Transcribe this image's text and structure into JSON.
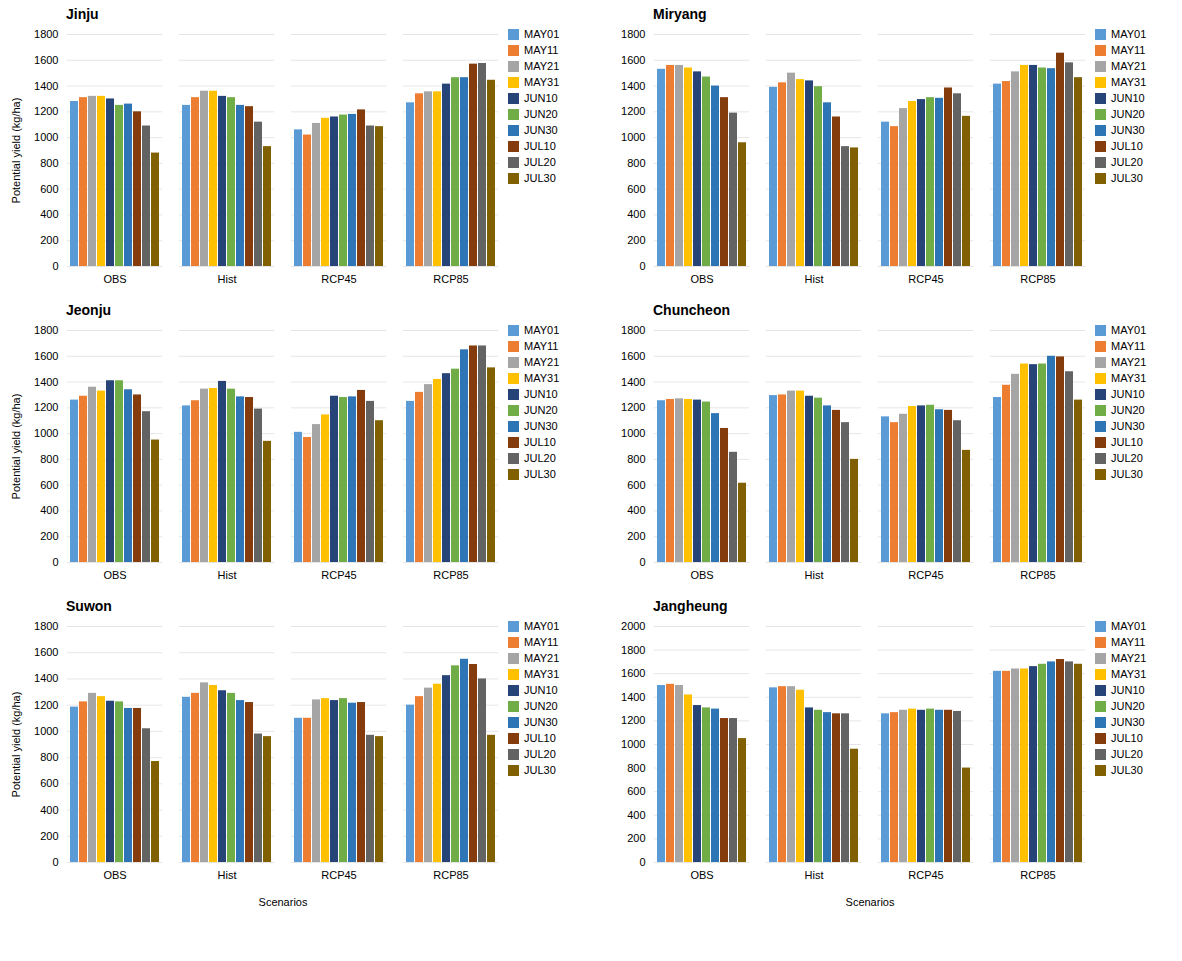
{
  "chart_data": [
    {
      "type": "bar",
      "title": "Jinju",
      "ylabel": "Potential yield (kg/ha)",
      "categories": [
        "OBS",
        "Hist",
        "RCP45",
        "RCP85"
      ],
      "series": [
        {
          "name": "MAY01",
          "color": "#5B9BD5",
          "values": [
            1280,
            1250,
            1060,
            1270
          ]
        },
        {
          "name": "MAY11",
          "color": "#ED7D31",
          "values": [
            1310,
            1310,
            1020,
            1340
          ]
        },
        {
          "name": "MAY21",
          "color": "#A5A5A5",
          "values": [
            1320,
            1360,
            1110,
            1355
          ]
        },
        {
          "name": "MAY31",
          "color": "#FFC000",
          "values": [
            1320,
            1360,
            1150,
            1355
          ]
        },
        {
          "name": "JUN10",
          "color": "#264478",
          "values": [
            1300,
            1320,
            1160,
            1415
          ]
        },
        {
          "name": "JUN20",
          "color": "#70AD47",
          "values": [
            1250,
            1310,
            1175,
            1465
          ]
        },
        {
          "name": "JUN30",
          "color": "#2E75B6",
          "values": [
            1260,
            1250,
            1180,
            1465
          ]
        },
        {
          "name": "JUL10",
          "color": "#843C0C",
          "values": [
            1200,
            1240,
            1215,
            1570
          ]
        },
        {
          "name": "JUL20",
          "color": "#636363",
          "values": [
            1090,
            1120,
            1090,
            1575
          ]
        },
        {
          "name": "JUL30",
          "color": "#806000",
          "values": [
            880,
            930,
            1085,
            1445
          ]
        }
      ],
      "ylim": [
        0,
        1800
      ],
      "yticks": [
        0,
        200,
        400,
        600,
        800,
        1000,
        1200,
        1400,
        1600,
        1800
      ],
      "grid": true,
      "legend": "right"
    },
    {
      "type": "bar",
      "title": "Miryang",
      "categories": [
        "OBS",
        "Hist",
        "RCP45",
        "RCP85"
      ],
      "series": [
        {
          "name": "MAY01",
          "color": "#5B9BD5",
          "values": [
            1530,
            1390,
            1120,
            1415
          ]
        },
        {
          "name": "MAY11",
          "color": "#ED7D31",
          "values": [
            1560,
            1425,
            1085,
            1435
          ]
        },
        {
          "name": "MAY21",
          "color": "#A5A5A5",
          "values": [
            1560,
            1500,
            1225,
            1510
          ]
        },
        {
          "name": "MAY31",
          "color": "#FFC000",
          "values": [
            1540,
            1450,
            1280,
            1560
          ]
        },
        {
          "name": "JUN10",
          "color": "#264478",
          "values": [
            1510,
            1440,
            1295,
            1560
          ]
        },
        {
          "name": "JUN20",
          "color": "#70AD47",
          "values": [
            1470,
            1395,
            1310,
            1540
          ]
        },
        {
          "name": "JUN30",
          "color": "#2E75B6",
          "values": [
            1400,
            1270,
            1305,
            1535
          ]
        },
        {
          "name": "JUL10",
          "color": "#843C0C",
          "values": [
            1310,
            1160,
            1385,
            1655
          ]
        },
        {
          "name": "JUL20",
          "color": "#636363",
          "values": [
            1190,
            930,
            1340,
            1580
          ]
        },
        {
          "name": "JUL30",
          "color": "#806000",
          "values": [
            960,
            920,
            1165,
            1465
          ]
        }
      ],
      "ylim": [
        0,
        1800
      ],
      "yticks": [
        0,
        200,
        400,
        600,
        800,
        1000,
        1200,
        1400,
        1600,
        1800
      ],
      "grid": true,
      "legend": "right"
    },
    {
      "type": "bar",
      "title": "Jeonju",
      "ylabel": "Potential yield (kg/ha)",
      "categories": [
        "OBS",
        "Hist",
        "RCP45",
        "RCP85"
      ],
      "series": [
        {
          "name": "MAY01",
          "color": "#5B9BD5",
          "values": [
            1260,
            1215,
            1010,
            1250
          ]
        },
        {
          "name": "MAY11",
          "color": "#ED7D31",
          "values": [
            1290,
            1255,
            970,
            1320
          ]
        },
        {
          "name": "MAY21",
          "color": "#A5A5A5",
          "values": [
            1360,
            1345,
            1070,
            1380
          ]
        },
        {
          "name": "MAY31",
          "color": "#FFC000",
          "values": [
            1330,
            1350,
            1145,
            1420
          ]
        },
        {
          "name": "JUN10",
          "color": "#264478",
          "values": [
            1410,
            1405,
            1290,
            1465
          ]
        },
        {
          "name": "JUN20",
          "color": "#70AD47",
          "values": [
            1410,
            1345,
            1280,
            1500
          ]
        },
        {
          "name": "JUN30",
          "color": "#2E75B6",
          "values": [
            1340,
            1285,
            1285,
            1650
          ]
        },
        {
          "name": "JUL10",
          "color": "#843C0C",
          "values": [
            1300,
            1280,
            1335,
            1680
          ]
        },
        {
          "name": "JUL20",
          "color": "#636363",
          "values": [
            1170,
            1190,
            1250,
            1680
          ]
        },
        {
          "name": "JUL30",
          "color": "#806000",
          "values": [
            950,
            940,
            1100,
            1510
          ]
        }
      ],
      "ylim": [
        0,
        1800
      ],
      "yticks": [
        0,
        200,
        400,
        600,
        800,
        1000,
        1200,
        1400,
        1600,
        1800
      ],
      "grid": true,
      "legend": "right"
    },
    {
      "type": "bar",
      "title": "Chuncheon",
      "categories": [
        "OBS",
        "Hist",
        "RCP45",
        "RCP85"
      ],
      "series": [
        {
          "name": "MAY01",
          "color": "#5B9BD5",
          "values": [
            1255,
            1295,
            1130,
            1280
          ]
        },
        {
          "name": "MAY11",
          "color": "#ED7D31",
          "values": [
            1265,
            1300,
            1085,
            1375
          ]
        },
        {
          "name": "MAY21",
          "color": "#A5A5A5",
          "values": [
            1270,
            1330,
            1150,
            1460
          ]
        },
        {
          "name": "MAY31",
          "color": "#FFC000",
          "values": [
            1265,
            1330,
            1210,
            1540
          ]
        },
        {
          "name": "JUN10",
          "color": "#264478",
          "values": [
            1260,
            1290,
            1215,
            1535
          ]
        },
        {
          "name": "JUN20",
          "color": "#70AD47",
          "values": [
            1245,
            1275,
            1220,
            1540
          ]
        },
        {
          "name": "JUN30",
          "color": "#2E75B6",
          "values": [
            1155,
            1215,
            1185,
            1600
          ]
        },
        {
          "name": "JUL10",
          "color": "#843C0C",
          "values": [
            1040,
            1180,
            1180,
            1595
          ]
        },
        {
          "name": "JUL20",
          "color": "#636363",
          "values": [
            855,
            1085,
            1100,
            1480
          ]
        },
        {
          "name": "JUL30",
          "color": "#806000",
          "values": [
            615,
            800,
            870,
            1260
          ]
        }
      ],
      "ylim": [
        0,
        1800
      ],
      "yticks": [
        0,
        200,
        400,
        600,
        800,
        1000,
        1200,
        1400,
        1600,
        1800
      ],
      "grid": true,
      "legend": "right"
    },
    {
      "type": "bar",
      "title": "Suwon",
      "ylabel": "Potential yield (kg/ha)",
      "xlabel": "Scenarios",
      "categories": [
        "OBS",
        "Hist",
        "RCP45",
        "RCP85"
      ],
      "series": [
        {
          "name": "MAY01",
          "color": "#5B9BD5",
          "values": [
            1185,
            1260,
            1100,
            1200
          ]
        },
        {
          "name": "MAY11",
          "color": "#ED7D31",
          "values": [
            1225,
            1290,
            1100,
            1265
          ]
        },
        {
          "name": "MAY21",
          "color": "#A5A5A5",
          "values": [
            1290,
            1370,
            1240,
            1330
          ]
        },
        {
          "name": "MAY31",
          "color": "#FFC000",
          "values": [
            1265,
            1350,
            1250,
            1360
          ]
        },
        {
          "name": "JUN10",
          "color": "#264478",
          "values": [
            1230,
            1310,
            1235,
            1425
          ]
        },
        {
          "name": "JUN20",
          "color": "#70AD47",
          "values": [
            1225,
            1290,
            1250,
            1500
          ]
        },
        {
          "name": "JUN30",
          "color": "#2E75B6",
          "values": [
            1175,
            1235,
            1215,
            1550
          ]
        },
        {
          "name": "JUL10",
          "color": "#843C0C",
          "values": [
            1175,
            1220,
            1220,
            1510
          ]
        },
        {
          "name": "JUL20",
          "color": "#636363",
          "values": [
            1020,
            980,
            970,
            1400
          ]
        },
        {
          "name": "JUL30",
          "color": "#806000",
          "values": [
            770,
            960,
            960,
            970
          ]
        }
      ],
      "ylim": [
        0,
        1800
      ],
      "yticks": [
        0,
        200,
        400,
        600,
        800,
        1000,
        1200,
        1400,
        1600,
        1800
      ],
      "grid": true,
      "legend": "right"
    },
    {
      "type": "bar",
      "title": "Jangheung",
      "xlabel": "Scenarios",
      "categories": [
        "OBS",
        "Hist",
        "RCP45",
        "RCP85"
      ],
      "series": [
        {
          "name": "MAY01",
          "color": "#5B9BD5",
          "values": [
            1500,
            1480,
            1260,
            1620
          ]
        },
        {
          "name": "MAY11",
          "color": "#ED7D31",
          "values": [
            1510,
            1490,
            1270,
            1620
          ]
        },
        {
          "name": "MAY21",
          "color": "#A5A5A5",
          "values": [
            1500,
            1490,
            1290,
            1640
          ]
        },
        {
          "name": "MAY31",
          "color": "#FFC000",
          "values": [
            1420,
            1460,
            1300,
            1640
          ]
        },
        {
          "name": "JUN10",
          "color": "#264478",
          "values": [
            1330,
            1310,
            1290,
            1660
          ]
        },
        {
          "name": "JUN20",
          "color": "#70AD47",
          "values": [
            1310,
            1290,
            1300,
            1680
          ]
        },
        {
          "name": "JUN30",
          "color": "#2E75B6",
          "values": [
            1300,
            1270,
            1290,
            1700
          ]
        },
        {
          "name": "JUL10",
          "color": "#843C0C",
          "values": [
            1220,
            1260,
            1290,
            1720
          ]
        },
        {
          "name": "JUL20",
          "color": "#636363",
          "values": [
            1220,
            1260,
            1280,
            1700
          ]
        },
        {
          "name": "JUL30",
          "color": "#806000",
          "values": [
            1050,
            960,
            800,
            1680
          ]
        }
      ],
      "ylim": [
        0,
        2000
      ],
      "yticks": [
        0,
        200,
        400,
        600,
        800,
        1000,
        1200,
        1400,
        1600,
        1800,
        2000
      ],
      "grid": true,
      "legend": "right"
    }
  ]
}
